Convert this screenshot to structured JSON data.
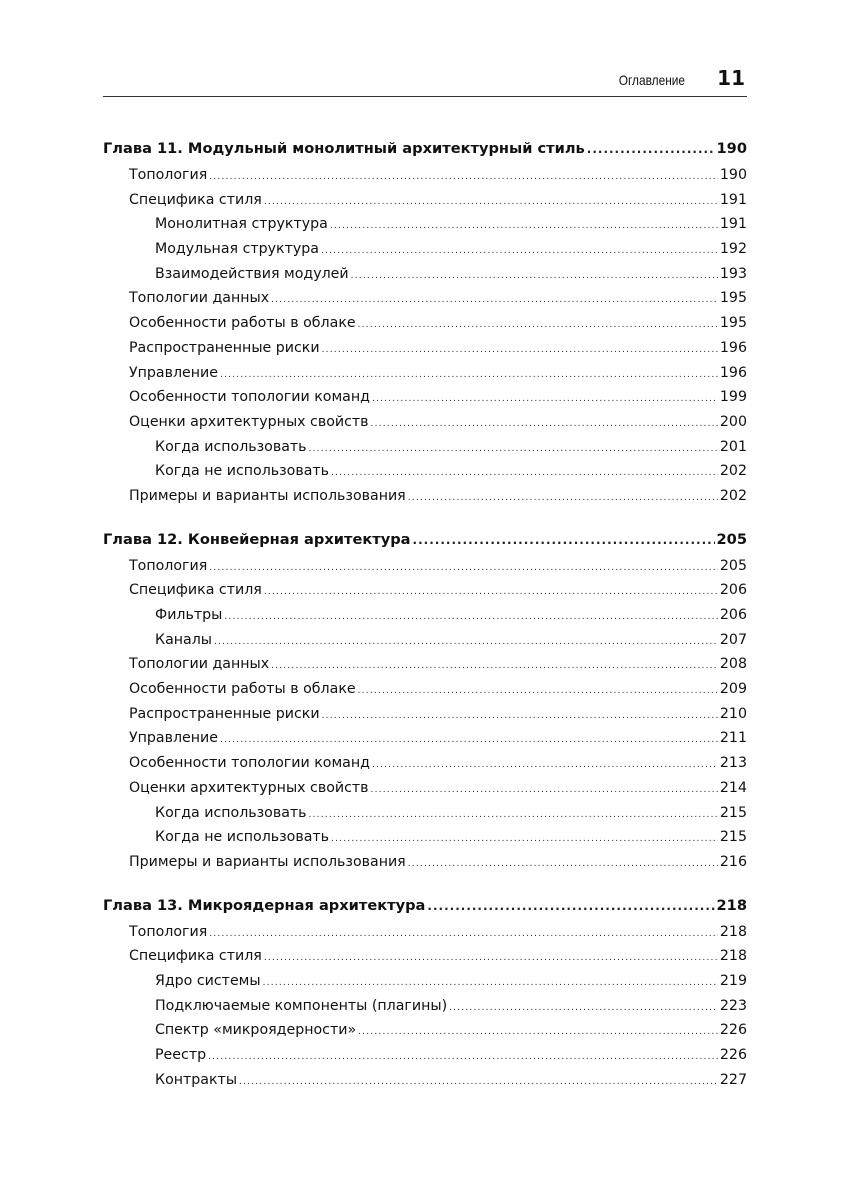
{
  "header": {
    "section": "Оглавление",
    "page_number": "11"
  },
  "toc": [
    {
      "level": 0,
      "title": "Глава 11. Модульный монолитный архитектурный стиль",
      "page": "190"
    },
    {
      "level": 1,
      "title": "Топология",
      "page": "190"
    },
    {
      "level": 1,
      "title": "Специфика стиля",
      "page": "191"
    },
    {
      "level": 2,
      "title": "Монолитная структура",
      "page": "191"
    },
    {
      "level": 2,
      "title": "Модульная структура",
      "page": "192"
    },
    {
      "level": 2,
      "title": "Взаимодействия модулей",
      "page": "193"
    },
    {
      "level": 1,
      "title": "Топологии данных",
      "page": "195"
    },
    {
      "level": 1,
      "title": "Особенности работы в облаке",
      "page": "195"
    },
    {
      "level": 1,
      "title": "Распространенные риски",
      "page": "196"
    },
    {
      "level": 1,
      "title": "Управление",
      "page": "196"
    },
    {
      "level": 1,
      "title": "Особенности топологии команд",
      "page": "199"
    },
    {
      "level": 1,
      "title": "Оценки архитектурных свойств",
      "page": "200"
    },
    {
      "level": 2,
      "title": "Когда использовать",
      "page": "201"
    },
    {
      "level": 2,
      "title": "Когда не использовать",
      "page": "202"
    },
    {
      "level": 1,
      "title": "Примеры и варианты использования",
      "page": "202"
    },
    {
      "level": 0,
      "title": "Глава 12. Конвейерная архитектура",
      "page": "205"
    },
    {
      "level": 1,
      "title": "Топология",
      "page": "205"
    },
    {
      "level": 1,
      "title": "Специфика стиля",
      "page": "206"
    },
    {
      "level": 2,
      "title": "Фильтры",
      "page": "206"
    },
    {
      "level": 2,
      "title": "Каналы",
      "page": "207"
    },
    {
      "level": 1,
      "title": "Топологии данных",
      "page": "208"
    },
    {
      "level": 1,
      "title": "Особенности работы в облаке",
      "page": "209"
    },
    {
      "level": 1,
      "title": "Распространенные риски",
      "page": "210"
    },
    {
      "level": 1,
      "title": "Управление",
      "page": "211"
    },
    {
      "level": 1,
      "title": "Особенности топологии команд",
      "page": "213"
    },
    {
      "level": 1,
      "title": "Оценки архитектурных свойств",
      "page": "214"
    },
    {
      "level": 2,
      "title": "Когда использовать",
      "page": "215"
    },
    {
      "level": 2,
      "title": "Когда не использовать",
      "page": "215"
    },
    {
      "level": 1,
      "title": "Примеры и варианты использования",
      "page": "216"
    },
    {
      "level": 0,
      "title": "Глава 13. Микроядерная архитектура",
      "page": "218"
    },
    {
      "level": 1,
      "title": "Топология",
      "page": "218"
    },
    {
      "level": 1,
      "title": "Специфика стиля",
      "page": "218"
    },
    {
      "level": 2,
      "title": "Ядро системы",
      "page": "219"
    },
    {
      "level": 2,
      "title": "Подключаемые компоненты (плагины)",
      "page": "223"
    },
    {
      "level": 2,
      "title": "Спектр «микроядерности»",
      "page": "226"
    },
    {
      "level": 2,
      "title": "Реестр",
      "page": "226"
    },
    {
      "level": 2,
      "title": "Контракты",
      "page": "227"
    }
  ]
}
